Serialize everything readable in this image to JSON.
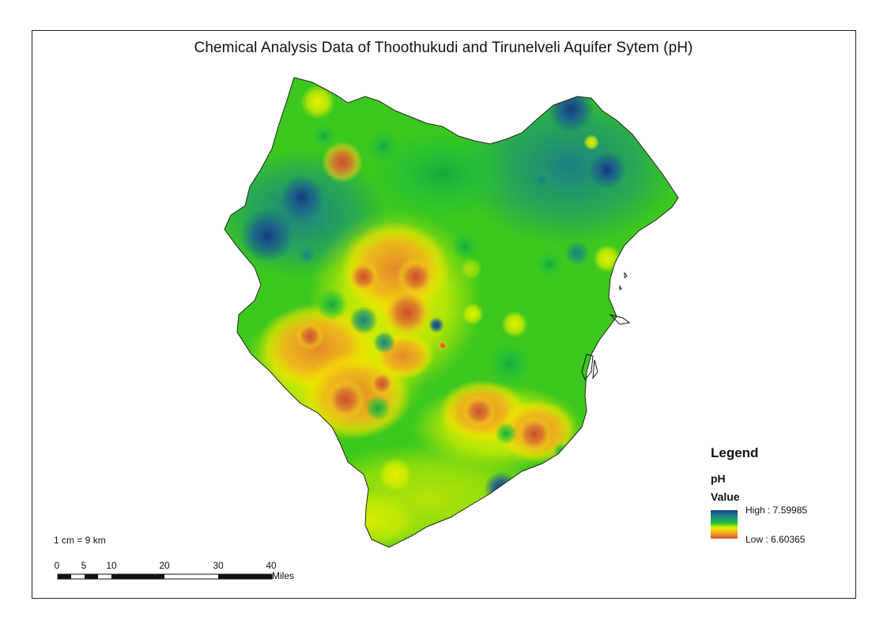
{
  "map": {
    "title": "Chemical Analysis Data of Thoothukudi and Tirunelveli Aquifer Sytem (pH)"
  },
  "legend": {
    "title": "Legend",
    "layer": "pH",
    "field": "Value",
    "high_label": "High : 7.59985",
    "low_label": "Low : 6.60365",
    "high_value": 7.59985,
    "low_value": 6.60365,
    "colors": [
      "#1a3e8c",
      "#1e8a8a",
      "#1fc13a",
      "#e6f000",
      "#f0a020",
      "#d2542c"
    ]
  },
  "scale": {
    "text": "1 cm = 9 km",
    "unit": "Miles",
    "ticks": [
      "0",
      "5",
      "10",
      "20",
      "30",
      "40"
    ]
  }
}
